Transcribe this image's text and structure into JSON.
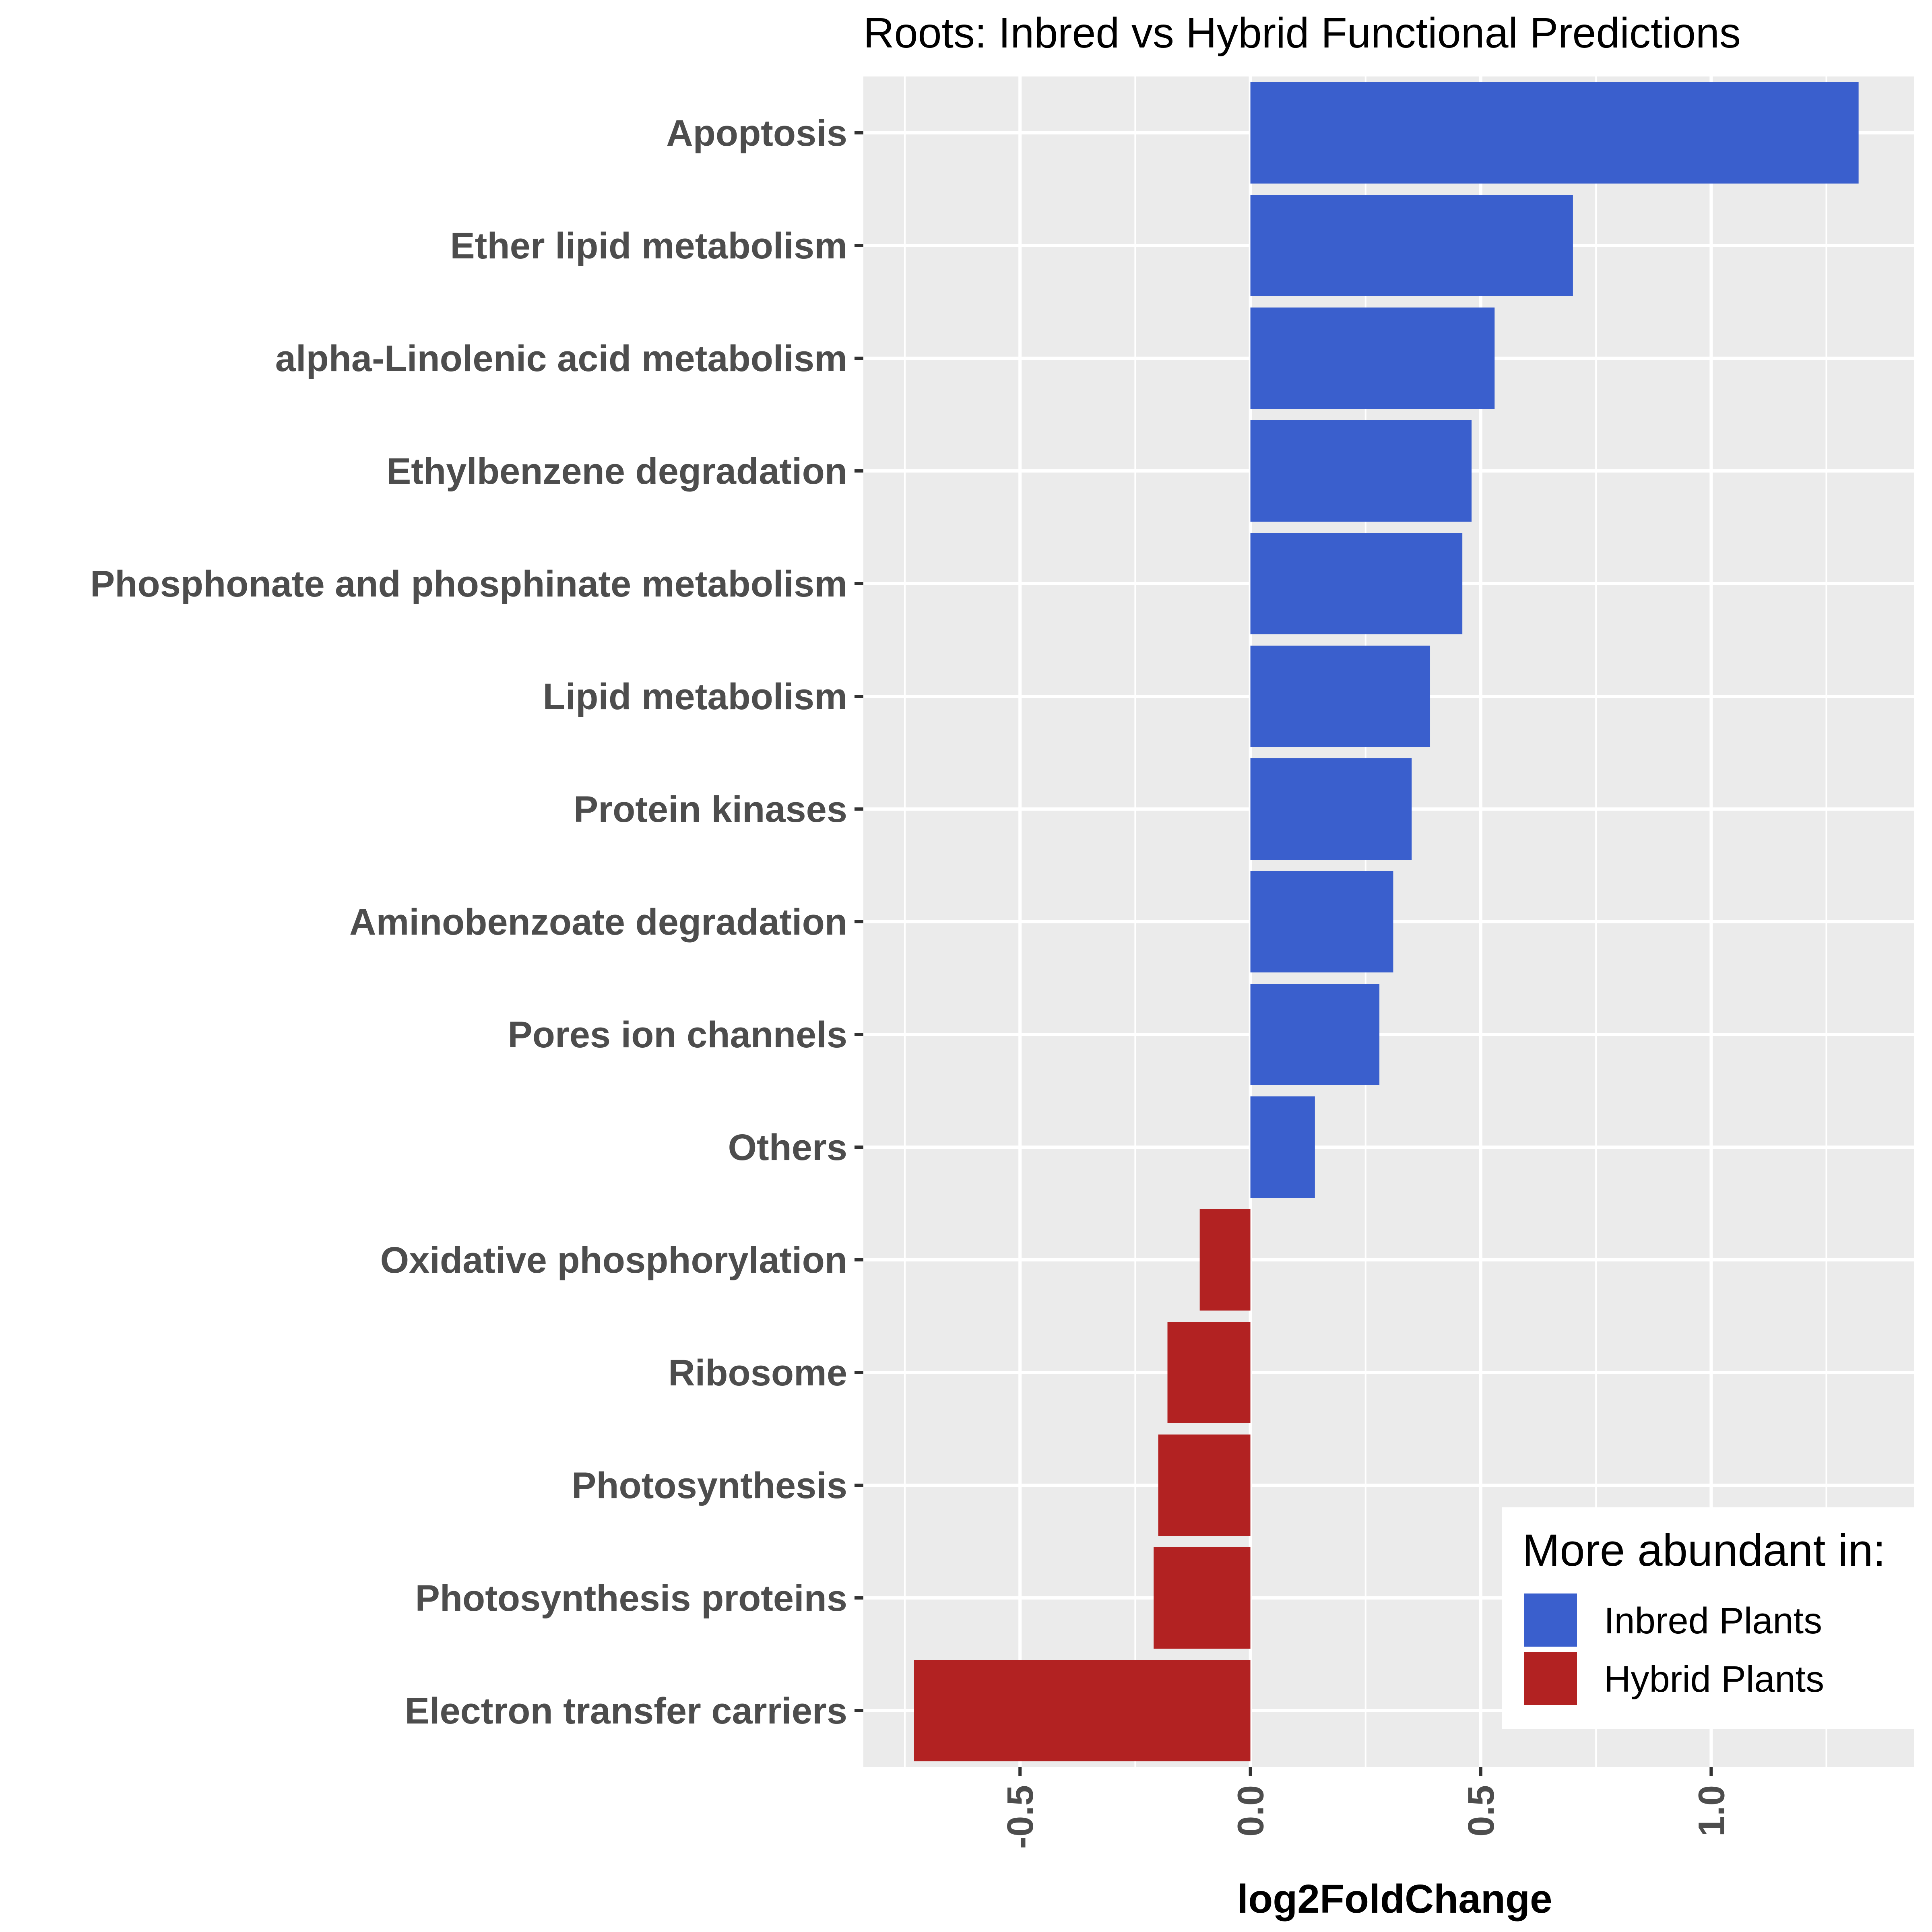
{
  "chart_data": {
    "type": "bar",
    "orientation": "horizontal",
    "title": "Roots: Inbred vs Hybrid Functional Predictions",
    "xlabel": "log2FoldChange",
    "ylabel": "",
    "xlim": [
      -0.84,
      1.44
    ],
    "x_ticks": [
      -0.5,
      0.0,
      0.5,
      1.0
    ],
    "x_tick_labels": [
      "-0.5",
      "0.0",
      "0.5",
      "1.0"
    ],
    "grid": true,
    "categories": [
      "Apoptosis",
      "Ether lipid metabolism",
      "alpha-Linolenic acid metabolism",
      "Ethylbenzene degradation",
      "Phosphonate and phosphinate metabolism",
      "Lipid metabolism",
      "Protein kinases",
      "Aminobenzoate degradation",
      "Pores ion channels",
      "Others",
      "Oxidative phosphorylation",
      "Ribosome",
      "Photosynthesis",
      "Photosynthesis proteins",
      "Electron transfer carriers"
    ],
    "values": [
      1.32,
      0.7,
      0.53,
      0.48,
      0.46,
      0.39,
      0.35,
      0.31,
      0.28,
      0.14,
      -0.11,
      -0.18,
      -0.2,
      -0.21,
      -0.73
    ],
    "groups": [
      "Inbred Plants",
      "Inbred Plants",
      "Inbred Plants",
      "Inbred Plants",
      "Inbred Plants",
      "Inbred Plants",
      "Inbred Plants",
      "Inbred Plants",
      "Inbred Plants",
      "Inbred Plants",
      "Hybrid Plants",
      "Hybrid Plants",
      "Hybrid Plants",
      "Hybrid Plants",
      "Hybrid Plants"
    ],
    "legend": {
      "title": "More abundant in:",
      "placement": "bottom-right",
      "entries": [
        {
          "name": "Inbred Plants",
          "color": "#3a5fcd"
        },
        {
          "name": "Hybrid Plants",
          "color": "#b22222"
        }
      ]
    },
    "colors": {
      "panel_background": "#ebebeb",
      "grid": "#ffffff",
      "text": "#4d4d4d"
    }
  }
}
